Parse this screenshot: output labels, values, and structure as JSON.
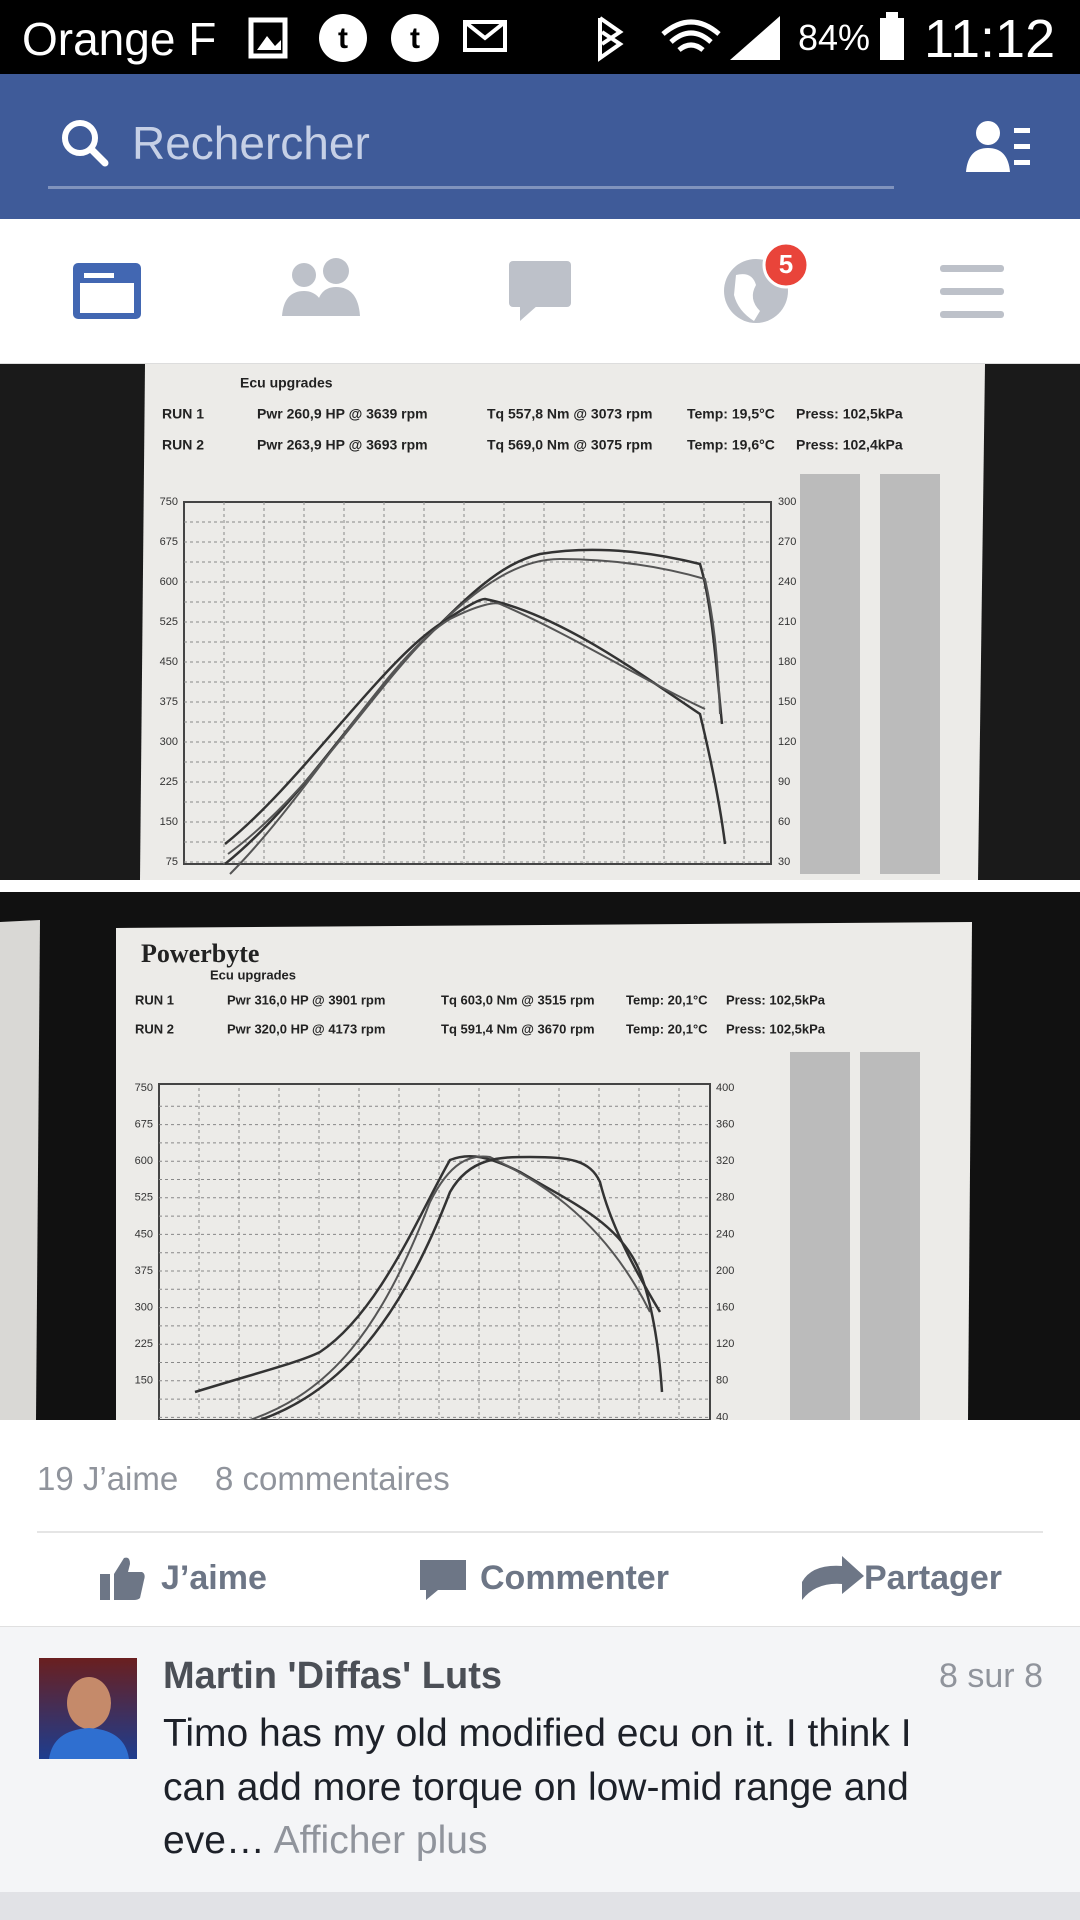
{
  "status_bar": {
    "carrier": "Orange F",
    "battery": "84%",
    "time": "11:12"
  },
  "search": {
    "placeholder": "Rechercher"
  },
  "tabs": {
    "notification_badge": "5"
  },
  "photos": [
    {
      "subtitle": "Ecu upgrades",
      "rows": [
        {
          "run": "RUN 1",
          "power": "Pwr 260,9 HP @ 3639 rpm",
          "torque": "Tq 557,8 Nm @ 3073 rpm",
          "temp": "Temp: 19,5°C",
          "press": "Press: 102,5kPa"
        },
        {
          "run": "RUN 2",
          "power": "Pwr 263,9 HP @ 3693 rpm",
          "torque": "Tq 569,0 Nm @ 3075 rpm",
          "temp": "Temp: 19,6°C",
          "press": "Press: 102,4kPa"
        }
      ],
      "nm_ticks": [
        "750",
        "675",
        "600",
        "525",
        "450",
        "375",
        "300",
        "225",
        "150",
        "75"
      ],
      "hp_ticks": [
        "300",
        "270",
        "240",
        "210",
        "180",
        "150",
        "120",
        "90",
        "60",
        "30"
      ]
    },
    {
      "brand": "Powerbyte",
      "subtitle": "Ecu upgrades",
      "rows": [
        {
          "run": "RUN 1",
          "power": "Pwr 316,0 HP @ 3901 rpm",
          "torque": "Tq 603,0 Nm @ 3515 rpm",
          "temp": "Temp: 20,1°C",
          "press": "Press: 102,5kPa"
        },
        {
          "run": "RUN 2",
          "power": "Pwr 320,0 HP @ 4173 rpm",
          "torque": "Tq 591,4 Nm @ 3670 rpm",
          "temp": "Temp: 20,1°C",
          "press": "Press: 102,5kPa"
        }
      ],
      "nm_ticks": [
        "750",
        "675",
        "600",
        "525",
        "450",
        "375",
        "300",
        "225",
        "150"
      ],
      "hp_ticks": [
        "400",
        "360",
        "320",
        "280",
        "240",
        "200",
        "160",
        "120",
        "80",
        "40"
      ]
    }
  ],
  "post": {
    "likes": "19 J’aime",
    "comments": "8 commentaires",
    "actions": [
      "J’aime",
      "Commenter",
      "Partager"
    ]
  },
  "comment": {
    "author": "Martin 'Diffas' Luts",
    "counter": "8 sur 8",
    "lines": [
      "Timo has my old modified ecu on it. I think I",
      "can add more torque on low-mid range and",
      "eve…"
    ],
    "more": "Afficher plus"
  }
}
